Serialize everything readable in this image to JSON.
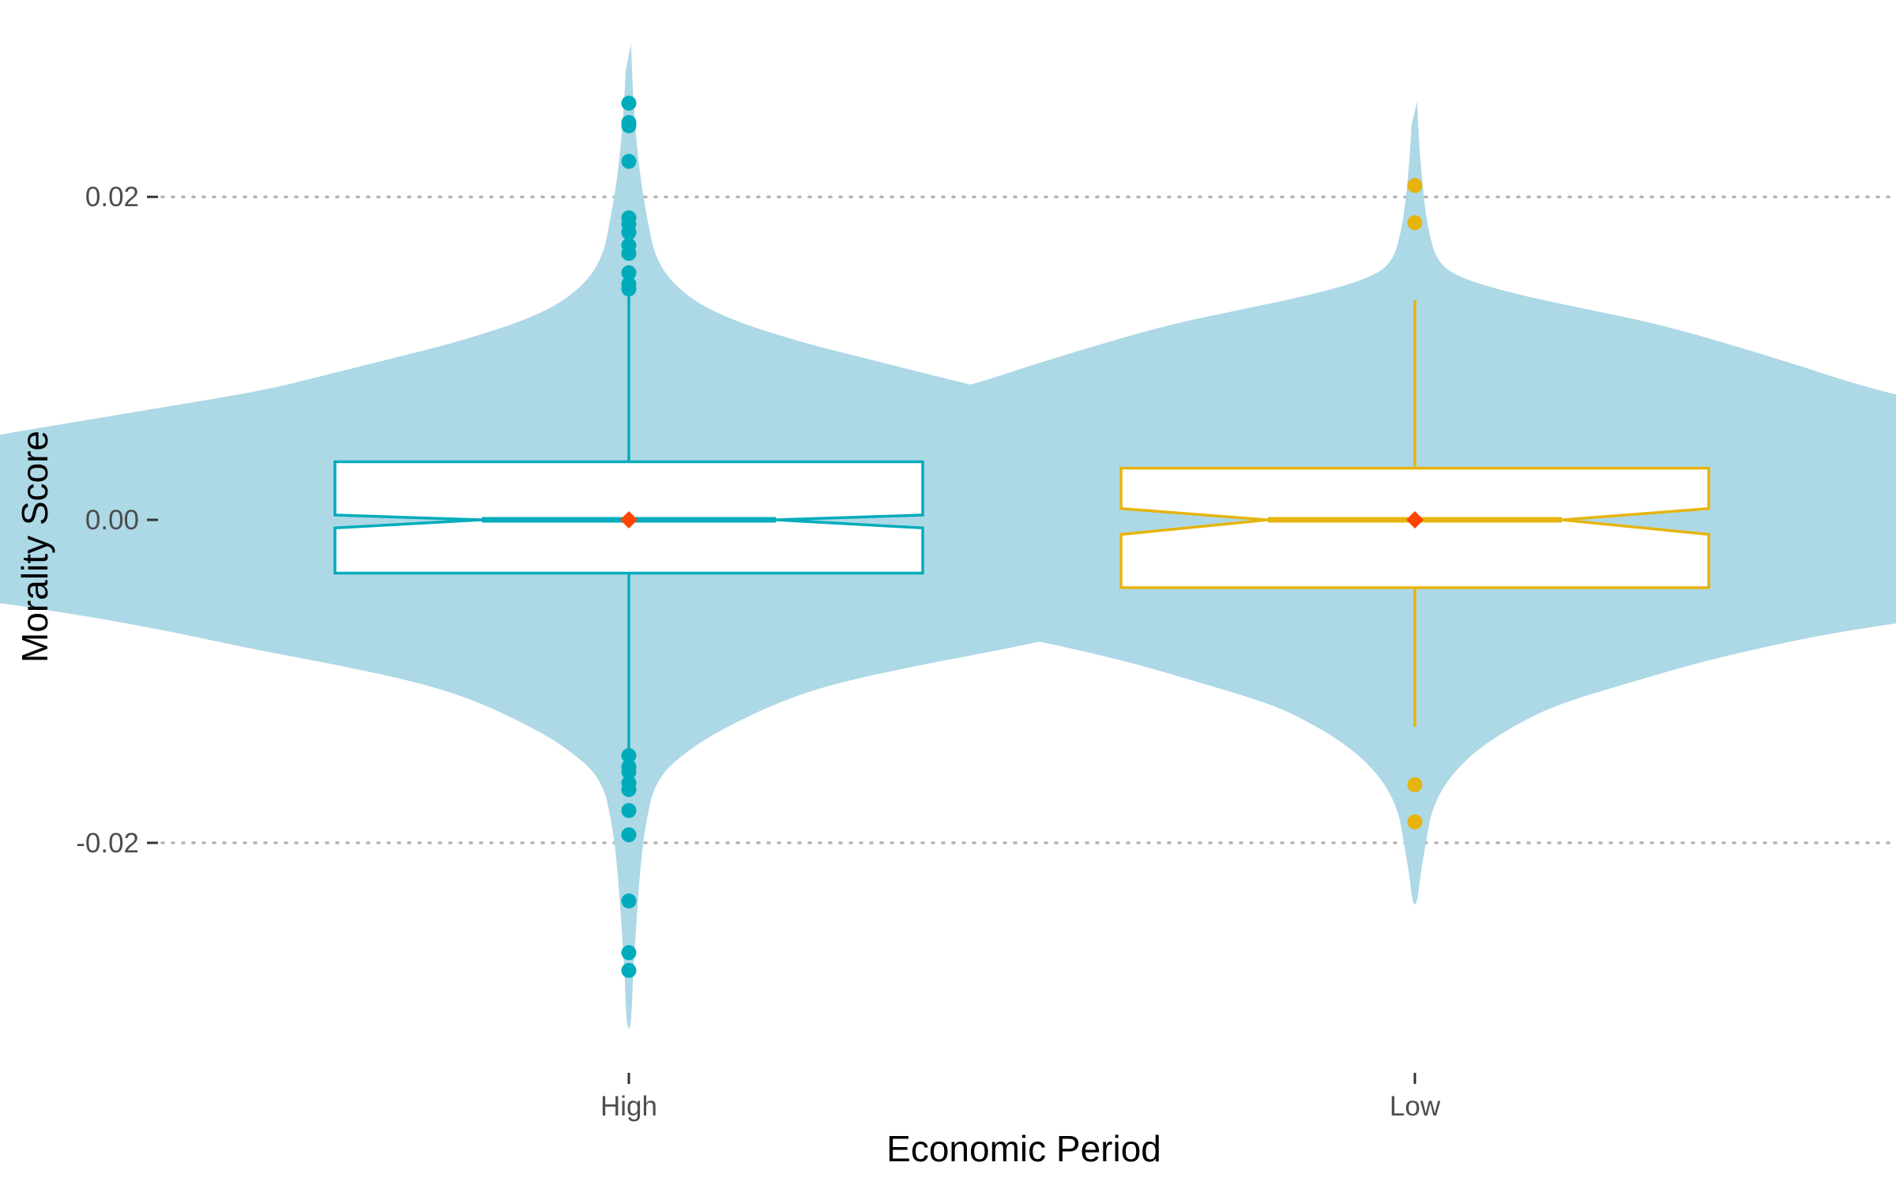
{
  "chart_data": {
    "type": "violin-box",
    "title": "",
    "xlabel": "Economic Period",
    "ylabel": "Morality Score",
    "ylim": [
      -0.0315,
      0.0295
    ],
    "y_ticks": [
      -0.02,
      0.0,
      0.02
    ],
    "y_tick_labels": [
      "-0.02",
      "0.00",
      "0.02"
    ],
    "grid": {
      "major_y": true,
      "style": "dotted",
      "x": false
    },
    "legend": "none",
    "violin_color": "#add8e6",
    "mean_marker_color": "#ff4500",
    "categories": [
      "High",
      "Low"
    ],
    "groups": [
      {
        "category": "High",
        "color": "#00acbb",
        "box": {
          "q1": -0.0033,
          "median": 0.0,
          "q3": 0.0036,
          "whisker_low": -0.0142,
          "whisker_high": 0.0142,
          "notch_low": -0.0005,
          "notch_high": 0.0003
        },
        "mean": 0.0,
        "outliers": [
          0.0258,
          0.0246,
          0.0244,
          0.0222,
          0.0187,
          0.0183,
          0.0178,
          0.017,
          0.0165,
          0.0153,
          0.0146,
          0.0143,
          -0.0146,
          -0.0153,
          -0.0156,
          -0.0163,
          -0.0167,
          -0.018,
          -0.0195,
          -0.0236,
          -0.0268,
          -0.0279
        ],
        "violin": {
          "max_half_width": 0.0342,
          "profile": [
            [
              0.0295,
              0.002
            ],
            [
              0.026,
              0.004
            ],
            [
              0.022,
              0.009
            ],
            [
              0.019,
              0.016
            ],
            [
              0.016,
              0.025
            ],
            [
              0.014,
              0.05
            ],
            [
              0.0125,
              0.09
            ],
            [
              0.011,
              0.16
            ],
            [
              0.01,
              0.22
            ],
            [
              0.009,
              0.28
            ],
            [
              0.008,
              0.34
            ],
            [
              0.0069,
              0.44
            ],
            [
              0.006,
              0.52
            ],
            [
              0.005,
              0.61
            ],
            [
              0.004,
              0.68
            ],
            [
              0.003,
              0.77
            ],
            [
              0.002,
              0.88
            ],
            [
              0.001,
              0.95
            ],
            [
              0.0,
              1.0
            ],
            [
              -0.001,
              0.97
            ],
            [
              -0.002,
              0.9
            ],
            [
              -0.003,
              0.82
            ],
            [
              -0.004,
              0.7
            ],
            [
              -0.005,
              0.6
            ],
            [
              -0.006,
              0.5
            ],
            [
              -0.007,
              0.42
            ],
            [
              -0.008,
              0.35
            ],
            [
              -0.009,
              0.27
            ],
            [
              -0.01,
              0.2
            ],
            [
              -0.011,
              0.15
            ],
            [
              -0.0125,
              0.1
            ],
            [
              -0.014,
              0.06
            ],
            [
              -0.016,
              0.025
            ],
            [
              -0.019,
              0.015
            ],
            [
              -0.022,
              0.01
            ],
            [
              -0.025,
              0.007
            ],
            [
              -0.028,
              0.004
            ],
            [
              -0.0315,
              0.002
            ]
          ]
        }
      },
      {
        "category": "Low",
        "color": "#e6b40d",
        "box": {
          "q1": -0.0042,
          "median": 0.0,
          "q3": 0.0032,
          "whisker_low": -0.0128,
          "whisker_high": 0.0136,
          "notch_low": -0.0009,
          "notch_high": 0.0007
        },
        "mean": 0.0,
        "outliers": [
          0.0207,
          0.0184,
          -0.0164,
          -0.0187
        ],
        "violin": {
          "max_half_width": 0.0349,
          "profile": [
            [
              0.0259,
              0.002
            ],
            [
              0.023,
              0.004
            ],
            [
              0.02,
              0.008
            ],
            [
              0.018,
              0.012
            ],
            [
              0.016,
              0.02
            ],
            [
              0.015,
              0.04
            ],
            [
              0.014,
              0.09
            ],
            [
              0.013,
              0.16
            ],
            [
              0.012,
              0.23
            ],
            [
              0.01,
              0.33
            ],
            [
              0.008,
              0.42
            ],
            [
              0.006,
              0.55
            ],
            [
              0.004,
              0.7
            ],
            [
              0.003,
              0.8
            ],
            [
              0.002,
              0.9
            ],
            [
              0.001,
              0.97
            ],
            [
              0.0,
              1.0
            ],
            [
              -0.001,
              0.96
            ],
            [
              -0.002,
              0.85
            ],
            [
              -0.003,
              0.75
            ],
            [
              -0.004,
              0.64
            ],
            [
              -0.005,
              0.56
            ],
            [
              -0.006,
              0.48
            ],
            [
              -0.007,
              0.38
            ],
            [
              -0.008,
              0.31
            ],
            [
              -0.009,
              0.25
            ],
            [
              -0.01,
              0.2
            ],
            [
              -0.011,
              0.15
            ],
            [
              -0.012,
              0.11
            ],
            [
              -0.014,
              0.06
            ],
            [
              -0.016,
              0.03
            ],
            [
              -0.018,
              0.015
            ],
            [
              -0.02,
              0.01
            ],
            [
              -0.022,
              0.005
            ],
            [
              -0.0238,
              0.002
            ]
          ]
        }
      }
    ]
  }
}
